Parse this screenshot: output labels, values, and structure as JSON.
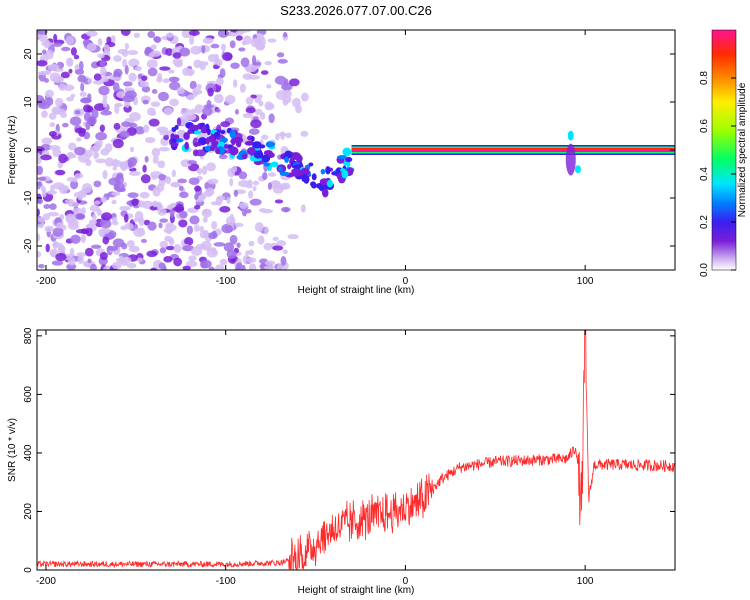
{
  "title": "S233.2026.077.07.00.C26",
  "chart_data": [
    {
      "type": "heatmap",
      "xlabel": "Height of straight line (km)",
      "ylabel": "Frequency (Hz)",
      "xlim": [
        -205,
        150
      ],
      "ylim": [
        -25,
        25
      ],
      "xticks": [
        -200,
        -100,
        0,
        100
      ],
      "yticks": [
        -20,
        -10,
        0,
        10,
        20
      ],
      "colorbar": {
        "label": "Normalized spectral amplitude",
        "range": [
          0.0,
          1.0
        ],
        "ticks": [
          0.0,
          0.2,
          0.4,
          0.6,
          0.8
        ],
        "colors": [
          "#ffffff",
          "#c9a8f0",
          "#7a1fd9",
          "#3a1ef0",
          "#0080ff",
          "#00e5ff",
          "#00ff66",
          "#9cff00",
          "#ffee00",
          "#ff8800",
          "#ff2a00",
          "#ff1493"
        ]
      },
      "features": [
        {
          "x_range": [
            -205,
            -65
          ],
          "freq_range": [
            -25,
            25
          ],
          "amplitude": 0.05
        },
        {
          "x_range": [
            -130,
            -30
          ],
          "freq_range": [
            -12,
            5
          ],
          "amplitude": 0.2
        },
        {
          "x_range": [
            -30,
            150
          ],
          "freq": 0,
          "amplitude": 0.9
        },
        {
          "x": 92,
          "freq_range": [
            -6,
            5
          ],
          "amplitude": 0.4
        }
      ]
    },
    {
      "type": "line",
      "xlabel": "Height of straight line (km)",
      "ylabel": "SNR (10 * v/v)",
      "xlim": [
        -205,
        150
      ],
      "ylim": [
        0,
        820
      ],
      "xticks": [
        -200,
        -100,
        0,
        100
      ],
      "yticks": [
        0,
        200,
        400,
        600,
        800
      ],
      "color": "#ff2a2a",
      "x": [
        -205,
        -150,
        -100,
        -70,
        -60,
        -50,
        -40,
        -30,
        -20,
        -10,
        0,
        10,
        20,
        30,
        50,
        70,
        90,
        95,
        98,
        100,
        102,
        105,
        120,
        150
      ],
      "values": [
        20,
        20,
        20,
        25,
        40,
        90,
        140,
        160,
        180,
        190,
        210,
        240,
        310,
        350,
        370,
        375,
        380,
        420,
        200,
        820,
        240,
        360,
        360,
        355
      ]
    }
  ]
}
